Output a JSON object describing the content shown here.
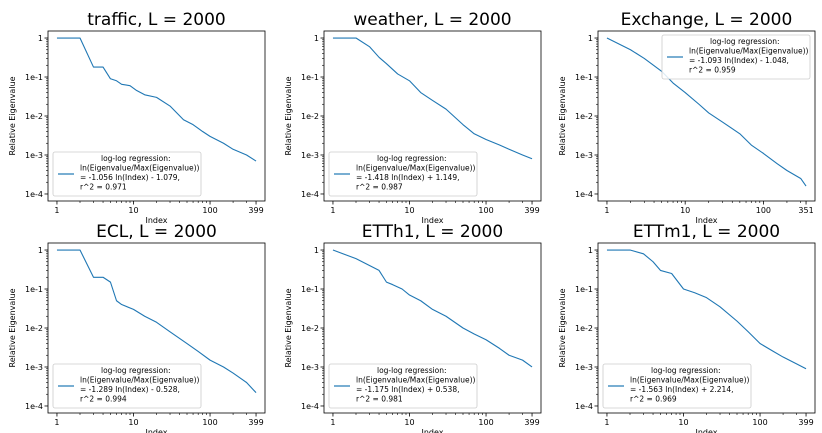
{
  "chart_data": [
    {
      "type": "line",
      "title": "traffic, L = 2000",
      "xlabel": "Index",
      "ylabel": "Relative Eigenvalue",
      "xscale": "log",
      "yscale": "log",
      "xlim": [
        1,
        399
      ],
      "ylim": [
        0.0001,
        1
      ],
      "xticks": [
        {
          "v": 1,
          "label": "1"
        },
        {
          "v": 10,
          "label": "10"
        },
        {
          "v": 100,
          "label": "100"
        },
        {
          "v": 399,
          "label": "399"
        }
      ],
      "yticks": [
        {
          "v": 1,
          "label": "1"
        },
        {
          "v": 0.1,
          "label": "1e-1"
        },
        {
          "v": 0.01,
          "label": "1e-2"
        },
        {
          "v": 0.001,
          "label": "1e-3"
        },
        {
          "v": 0.0001,
          "label": "1e-4"
        }
      ],
      "legend_position": "lower-left",
      "legend": [
        "log-log regression:",
        "ln(Eigenvalue/Max(Eigenvalue))",
        "= -1.056 ln(Index) - 1.079,",
        "r^2 = 0.971"
      ],
      "color": "#1f77b4",
      "series": [
        {
          "x": [
            1,
            2,
            3,
            4,
            5,
            6,
            7,
            9,
            11,
            14,
            20,
            30,
            45,
            60,
            80,
            100,
            150,
            200,
            300,
            399
          ],
          "y": [
            1,
            1,
            0.18,
            0.18,
            0.09,
            0.08,
            0.065,
            0.06,
            0.045,
            0.035,
            0.03,
            0.018,
            0.008,
            0.006,
            0.004,
            0.003,
            0.002,
            0.0014,
            0.001,
            0.0007
          ]
        }
      ]
    },
    {
      "type": "line",
      "title": "weather, L = 2000",
      "xlabel": "Index",
      "ylabel": "Relative Eigenvalue",
      "xscale": "log",
      "yscale": "log",
      "xlim": [
        1,
        399
      ],
      "ylim": [
        0.0001,
        1
      ],
      "xticks": [
        {
          "v": 1,
          "label": "1"
        },
        {
          "v": 10,
          "label": "10"
        },
        {
          "v": 100,
          "label": "100"
        },
        {
          "v": 399,
          "label": "399"
        }
      ],
      "yticks": [
        {
          "v": 1,
          "label": "1"
        },
        {
          "v": 0.1,
          "label": "1e-1"
        },
        {
          "v": 0.01,
          "label": "1e-2"
        },
        {
          "v": 0.001,
          "label": "1e-3"
        },
        {
          "v": 0.0001,
          "label": "1e-4"
        }
      ],
      "legend_position": "lower-left",
      "legend": [
        "log-log regression:",
        "ln(Eigenvalue/Max(Eigenvalue))",
        "= -1.418 ln(Index) + 1.149,",
        "r^2 = 0.987"
      ],
      "color": "#1f77b4",
      "series": [
        {
          "x": [
            1,
            2,
            3,
            4,
            5,
            7,
            10,
            14,
            20,
            30,
            50,
            70,
            100,
            150,
            200,
            300,
            399
          ],
          "y": [
            1,
            1,
            0.6,
            0.32,
            0.22,
            0.12,
            0.08,
            0.04,
            0.025,
            0.015,
            0.006,
            0.0035,
            0.0025,
            0.0018,
            0.0014,
            0.001,
            0.0008
          ]
        }
      ]
    },
    {
      "type": "line",
      "title": "Exchange, L = 2000",
      "xlabel": "Index",
      "ylabel": "Relative Eigenvalue",
      "xscale": "log",
      "yscale": "log",
      "xlim": [
        1,
        351
      ],
      "ylim": [
        0.0001,
        1
      ],
      "xticks": [
        {
          "v": 1,
          "label": "1"
        },
        {
          "v": 10,
          "label": "10"
        },
        {
          "v": 100,
          "label": "100"
        },
        {
          "v": 351,
          "label": "351"
        }
      ],
      "yticks": [
        {
          "v": 1,
          "label": "1"
        },
        {
          "v": 0.1,
          "label": "1e-1"
        },
        {
          "v": 0.01,
          "label": "1e-2"
        },
        {
          "v": 0.001,
          "label": "1e-3"
        },
        {
          "v": 0.0001,
          "label": "1e-4"
        }
      ],
      "legend_position": "upper-right",
      "legend": [
        "log-log regression:",
        "ln(Eigenvalue/Max(Eigenvalue))",
        "= -1.093 ln(Index) - 1.048,",
        "r^2 = 0.959"
      ],
      "color": "#1f77b4",
      "series": [
        {
          "x": [
            1,
            2,
            3,
            5,
            7,
            10,
            15,
            20,
            30,
            50,
            70,
            100,
            150,
            200,
            300,
            351
          ],
          "y": [
            1,
            0.5,
            0.3,
            0.14,
            0.07,
            0.04,
            0.02,
            0.012,
            0.007,
            0.0035,
            0.0018,
            0.0011,
            0.0006,
            0.0004,
            0.00025,
            0.00016
          ]
        }
      ]
    },
    {
      "type": "line",
      "title": "ECL, L = 2000",
      "xlabel": "Index",
      "ylabel": "Relative Eigenvalue",
      "xscale": "log",
      "yscale": "log",
      "xlim": [
        1,
        399
      ],
      "ylim": [
        0.0001,
        1
      ],
      "xticks": [
        {
          "v": 1,
          "label": "1"
        },
        {
          "v": 10,
          "label": "10"
        },
        {
          "v": 100,
          "label": "100"
        },
        {
          "v": 399,
          "label": "399"
        }
      ],
      "yticks": [
        {
          "v": 1,
          "label": "1"
        },
        {
          "v": 0.1,
          "label": "1e-1"
        },
        {
          "v": 0.01,
          "label": "1e-2"
        },
        {
          "v": 0.001,
          "label": "1e-3"
        },
        {
          "v": 0.0001,
          "label": "1e-4"
        }
      ],
      "legend_position": "lower-left",
      "legend": [
        "log-log regression:",
        "ln(Eigenvalue/Max(Eigenvalue))",
        "= -1.289 ln(Index) - 0.528,",
        "r^2 = 0.994"
      ],
      "color": "#1f77b4",
      "series": [
        {
          "x": [
            1,
            2,
            3,
            4,
            5,
            6,
            7,
            10,
            14,
            20,
            30,
            50,
            70,
            100,
            150,
            200,
            300,
            399
          ],
          "y": [
            1,
            1,
            0.2,
            0.2,
            0.15,
            0.05,
            0.04,
            0.03,
            0.02,
            0.014,
            0.008,
            0.004,
            0.0025,
            0.0015,
            0.001,
            0.0007,
            0.0004,
            0.00022
          ]
        }
      ]
    },
    {
      "type": "line",
      "title": "ETTh1, L = 2000",
      "xlabel": "Index",
      "ylabel": "Relative Eigenvalue",
      "xscale": "log",
      "yscale": "log",
      "xlim": [
        1,
        399
      ],
      "ylim": [
        0.0001,
        1
      ],
      "xticks": [
        {
          "v": 1,
          "label": "1"
        },
        {
          "v": 10,
          "label": "10"
        },
        {
          "v": 100,
          "label": "100"
        },
        {
          "v": 399,
          "label": "399"
        }
      ],
      "yticks": [
        {
          "v": 1,
          "label": "1"
        },
        {
          "v": 0.1,
          "label": "1e-1"
        },
        {
          "v": 0.01,
          "label": "1e-2"
        },
        {
          "v": 0.001,
          "label": "1e-3"
        },
        {
          "v": 0.0001,
          "label": "1e-4"
        }
      ],
      "legend_position": "lower-left",
      "legend": [
        "log-log regression:",
        "ln(Eigenvalue/Max(Eigenvalue))",
        "= -1.175 ln(Index) + 0.538,",
        "r^2 = 0.981"
      ],
      "color": "#1f77b4",
      "series": [
        {
          "x": [
            1,
            2,
            3,
            4,
            5,
            6,
            8,
            10,
            14,
            20,
            30,
            50,
            70,
            100,
            150,
            200,
            300,
            399
          ],
          "y": [
            1,
            0.6,
            0.4,
            0.3,
            0.15,
            0.13,
            0.1,
            0.07,
            0.05,
            0.03,
            0.02,
            0.01,
            0.007,
            0.005,
            0.003,
            0.002,
            0.0015,
            0.001
          ]
        }
      ]
    },
    {
      "type": "line",
      "title": "ETTm1, L = 2000",
      "xlabel": "Index",
      "ylabel": "Relative Eigenvalue",
      "xscale": "log",
      "yscale": "log",
      "xlim": [
        1,
        399
      ],
      "ylim": [
        0.0001,
        1
      ],
      "xticks": [
        {
          "v": 1,
          "label": "1"
        },
        {
          "v": 10,
          "label": "10"
        },
        {
          "v": 100,
          "label": "100"
        },
        {
          "v": 399,
          "label": "399"
        }
      ],
      "yticks": [
        {
          "v": 1,
          "label": "1"
        },
        {
          "v": 0.1,
          "label": "1e-1"
        },
        {
          "v": 0.01,
          "label": "1e-2"
        },
        {
          "v": 0.001,
          "label": "1e-3"
        },
        {
          "v": 0.0001,
          "label": "1e-4"
        }
      ],
      "legend_position": "lower-left",
      "legend": [
        "log-log regression:",
        "ln(Eigenvalue/Max(Eigenvalue))",
        "= -1.563 ln(Index) + 2.214,",
        "r^2 = 0.969"
      ],
      "color": "#1f77b4",
      "series": [
        {
          "x": [
            1,
            2,
            3,
            4,
            5,
            7,
            10,
            14,
            20,
            30,
            50,
            70,
            100,
            150,
            200,
            300,
            399
          ],
          "y": [
            1,
            1,
            0.8,
            0.5,
            0.3,
            0.25,
            0.1,
            0.08,
            0.06,
            0.035,
            0.015,
            0.008,
            0.004,
            0.0025,
            0.0018,
            0.0012,
            0.0009
          ]
        }
      ]
    }
  ]
}
